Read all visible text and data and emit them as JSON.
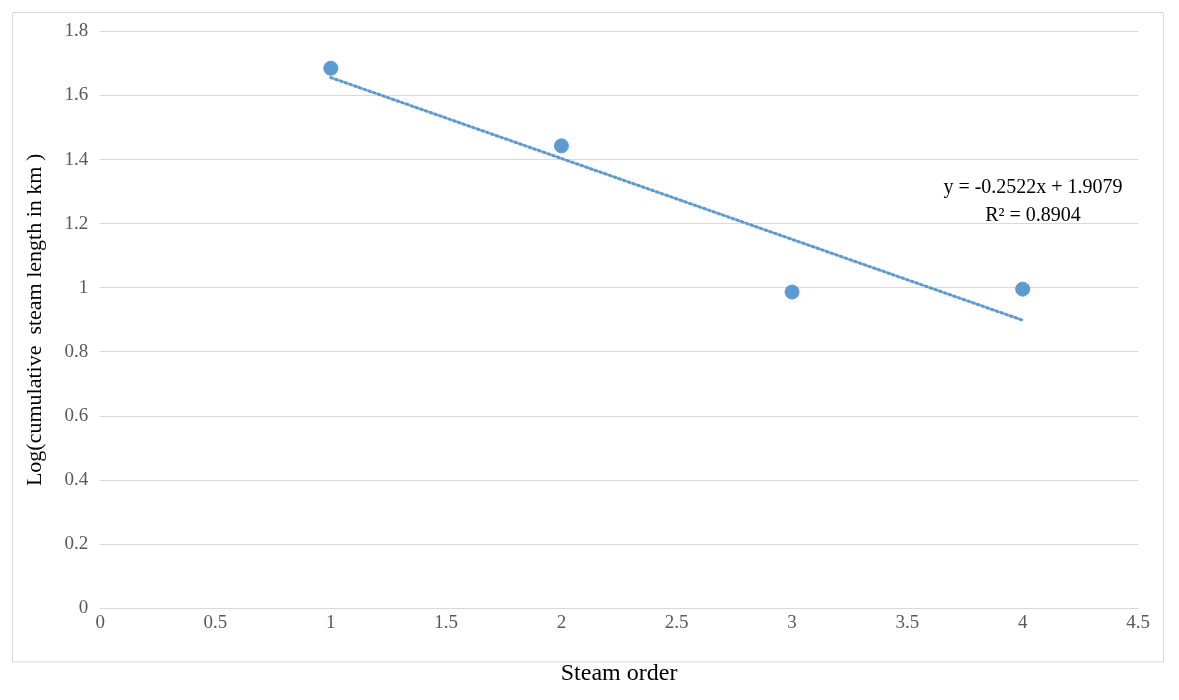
{
  "chart_data": {
    "type": "scatter",
    "xlabel": "Steam order",
    "ylabel": "Log(cumulative  steam length in km )",
    "xlim": [
      0,
      4.5
    ],
    "xticks": [
      0,
      0.5,
      1,
      1.5,
      2,
      2.5,
      3,
      3.5,
      4,
      4.5
    ],
    "ylim": [
      0,
      1.8
    ],
    "yticks": [
      0,
      0.2,
      0.4,
      0.6,
      0.8,
      1,
      1.2,
      1.4,
      1.6,
      1.8
    ],
    "grid": "y",
    "legend": false,
    "marker": "circle",
    "series": [
      {
        "color": "#5b9bd5",
        "x": [
          1,
          2,
          3,
          4
        ],
        "values": [
          1.685,
          1.443,
          0.987,
          0.996
        ]
      },
      {
        "type": "line",
        "color": "#5b9bd5",
        "line_style": "dotted",
        "marker": "none",
        "x": [
          1,
          4
        ],
        "values": [
          1.656,
          0.899
        ]
      }
    ],
    "annotations": [
      "y = -0.2522x + 1.9079",
      "R² = 0.8904"
    ]
  }
}
